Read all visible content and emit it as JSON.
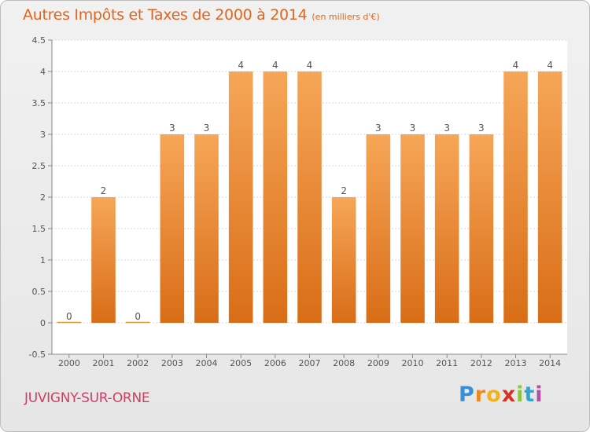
{
  "chart_data": {
    "type": "bar",
    "title": "Autres Impôts et Taxes de 2000 à 2014",
    "subtitle": "(en milliers d'€)",
    "categories": [
      "2000",
      "2001",
      "2002",
      "2003",
      "2004",
      "2005",
      "2006",
      "2007",
      "2008",
      "2009",
      "2010",
      "2011",
      "2012",
      "2013",
      "2014"
    ],
    "values": [
      0,
      2,
      0,
      3,
      3,
      4,
      4,
      4,
      2,
      3,
      3,
      3,
      3,
      4,
      4
    ],
    "data_labels": [
      "0",
      "2",
      "0",
      "3",
      "3",
      "4",
      "4",
      "4",
      "2",
      "3",
      "3",
      "3",
      "3",
      "4",
      "4"
    ],
    "y_ticks": [
      "-0.5",
      "0",
      "0.5",
      "1",
      "1.5",
      "2",
      "2.5",
      "3",
      "3.5",
      "4",
      "4.5"
    ],
    "ylim": [
      -0.5,
      4.5
    ],
    "grid": true,
    "bar_color": "#f0882a"
  },
  "footer": {
    "city": "JUVIGNY-SUR-ORNE",
    "logo_letters": [
      "P",
      "r",
      "o",
      "x",
      "i",
      "t",
      "i"
    ]
  }
}
